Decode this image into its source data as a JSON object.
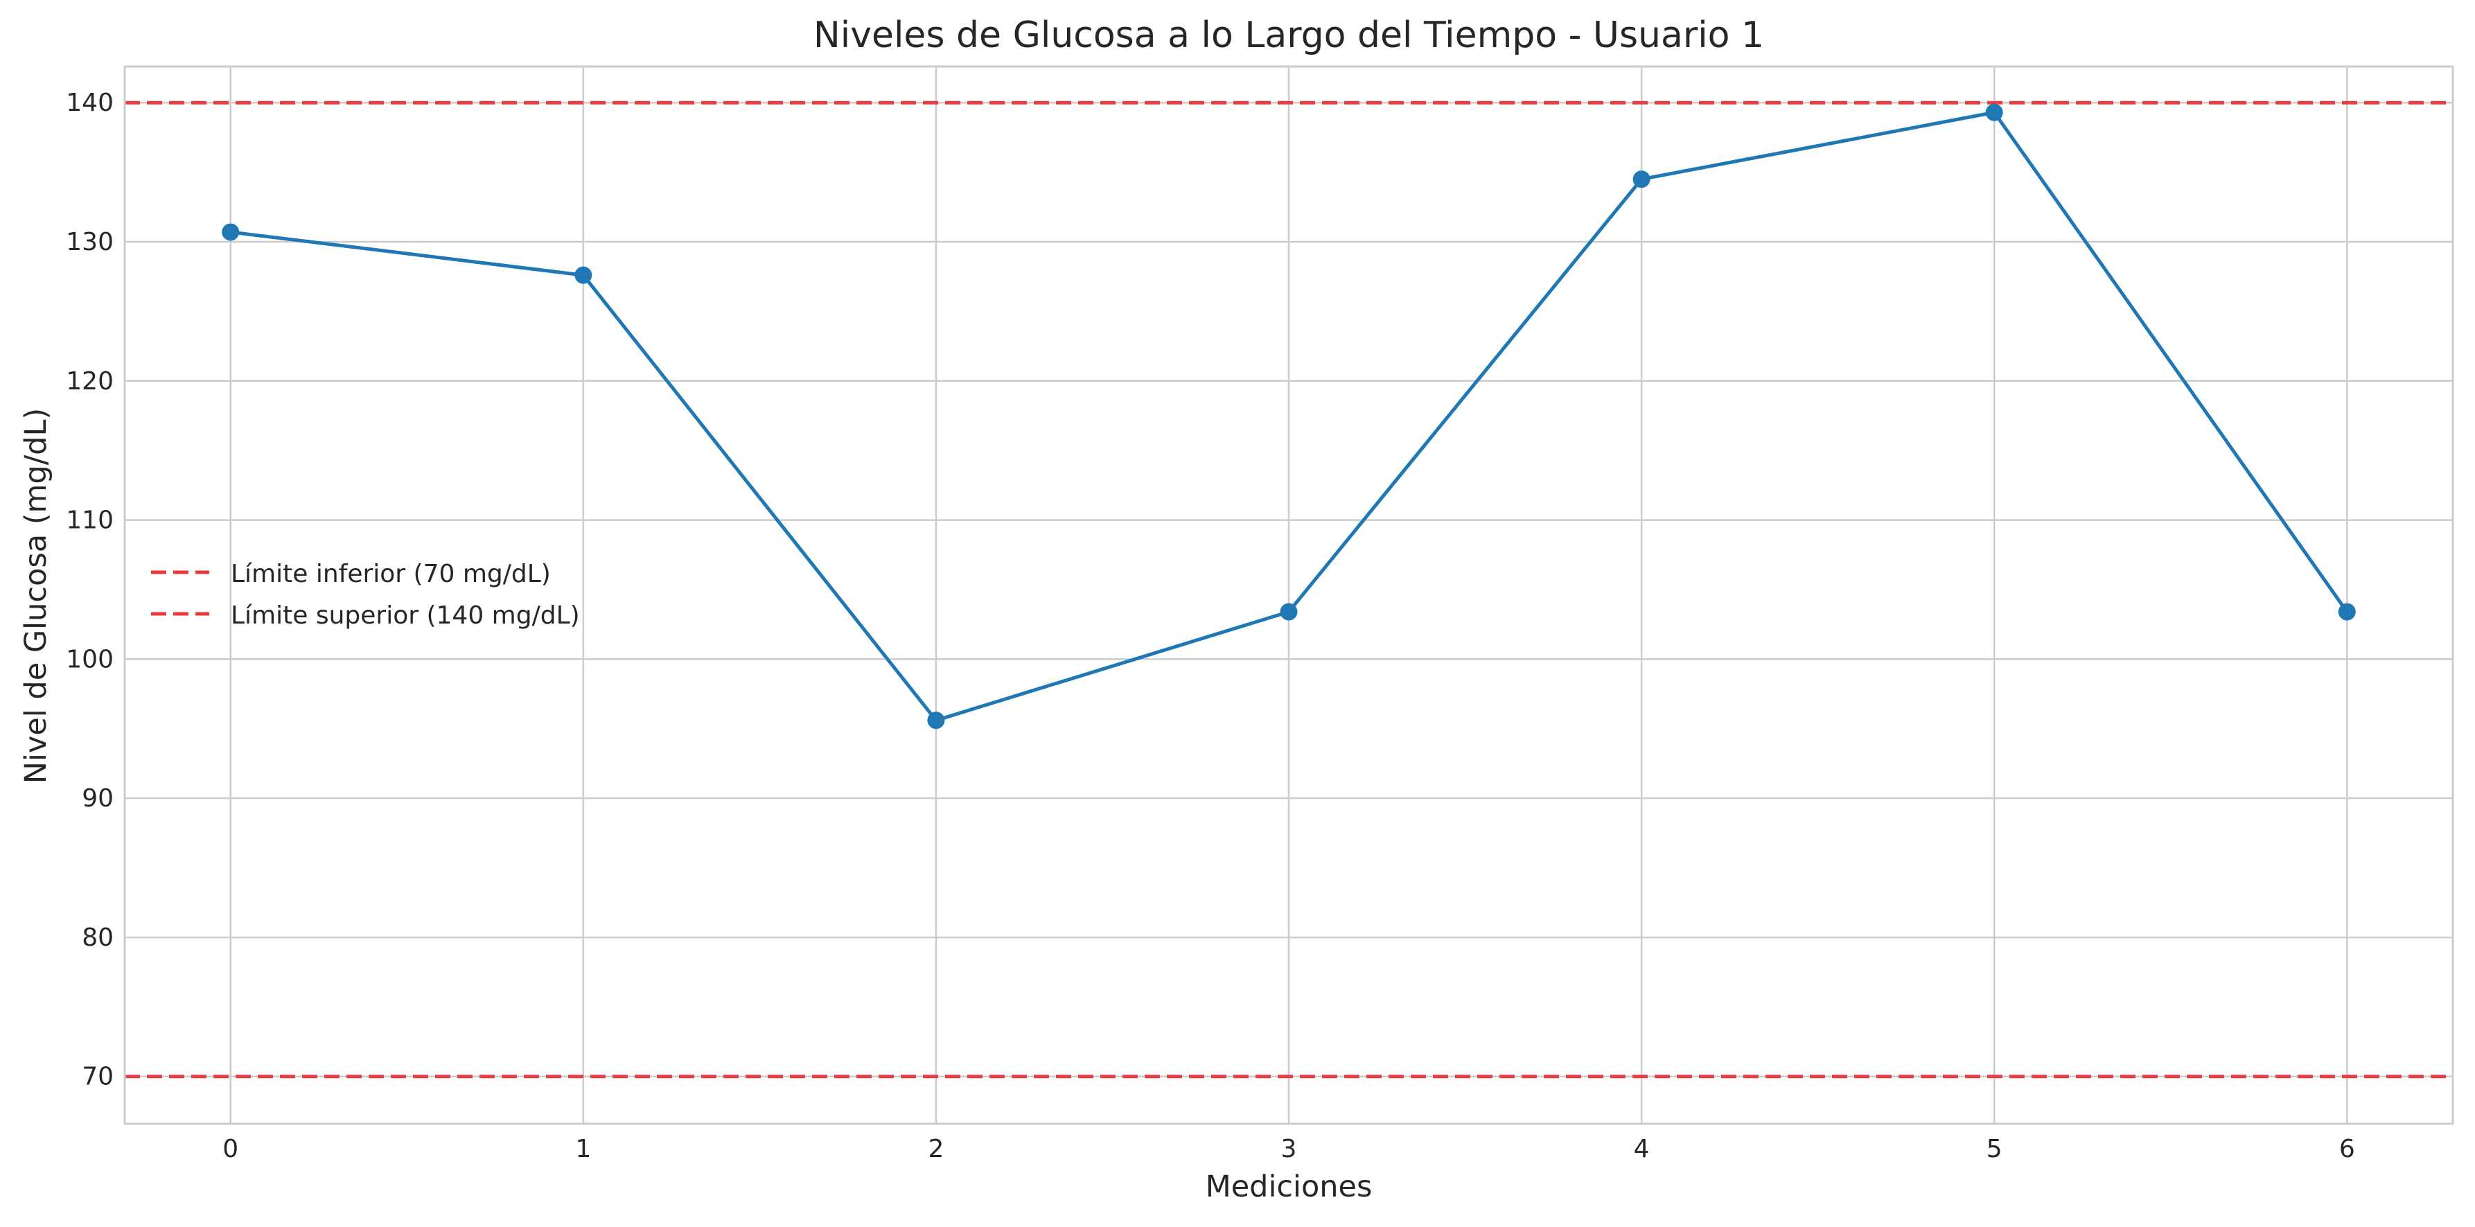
{
  "chart_data": {
    "type": "line",
    "title": "Niveles de Glucosa a lo Largo del Tiempo - Usuario 1",
    "xlabel": "Mediciones",
    "ylabel": "Nivel de Glucosa (mg/dL)",
    "xlim": [
      -0.3,
      6.3
    ],
    "ylim": [
      66.6,
      142.6
    ],
    "x_ticks": [
      0,
      1,
      2,
      3,
      4,
      5,
      6
    ],
    "y_ticks": [
      70,
      80,
      90,
      100,
      110,
      120,
      130,
      140
    ],
    "grid": true,
    "legend_position": "center-left",
    "x": [
      0,
      1,
      2,
      3,
      4,
      5,
      6
    ],
    "series": [
      {
        "color": "#1f77b4",
        "marker": "circle",
        "values": [
          130.7,
          127.6,
          95.6,
          103.4,
          134.5,
          139.3,
          103.4
        ]
      }
    ],
    "reference_lines": [
      {
        "label": "Límite inferior (70 mg/dL)",
        "y": 70,
        "color": "#e8383a",
        "style": "dashed"
      },
      {
        "label": "Límite superior (140 mg/dL)",
        "y": 140,
        "color": "#e8383a",
        "style": "dashed"
      }
    ]
  },
  "colors": {
    "grid": "#cccccc",
    "axes": "#cccccc",
    "text": "#262626"
  }
}
